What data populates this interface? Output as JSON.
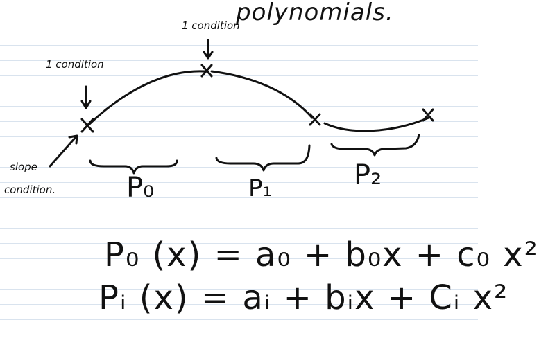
{
  "heading": "polynomials.",
  "labels": {
    "condition_top": "1 condition",
    "condition_left": "1 condition",
    "slope_line1": "slope",
    "slope_line2": "condition."
  },
  "pieces": {
    "p0": "P₀",
    "p1": "P₁",
    "p2": "P₂"
  },
  "equations": {
    "eq0": "P₀ (x) = a₀ + b₀x + c₀ x²",
    "eq1": "Pᵢ (x) = aᵢ + bᵢx + Cᵢ x²"
  },
  "colors": {
    "ink": "#111111",
    "ruled_line": "#d9e3ee",
    "paper": "#ffffff"
  }
}
